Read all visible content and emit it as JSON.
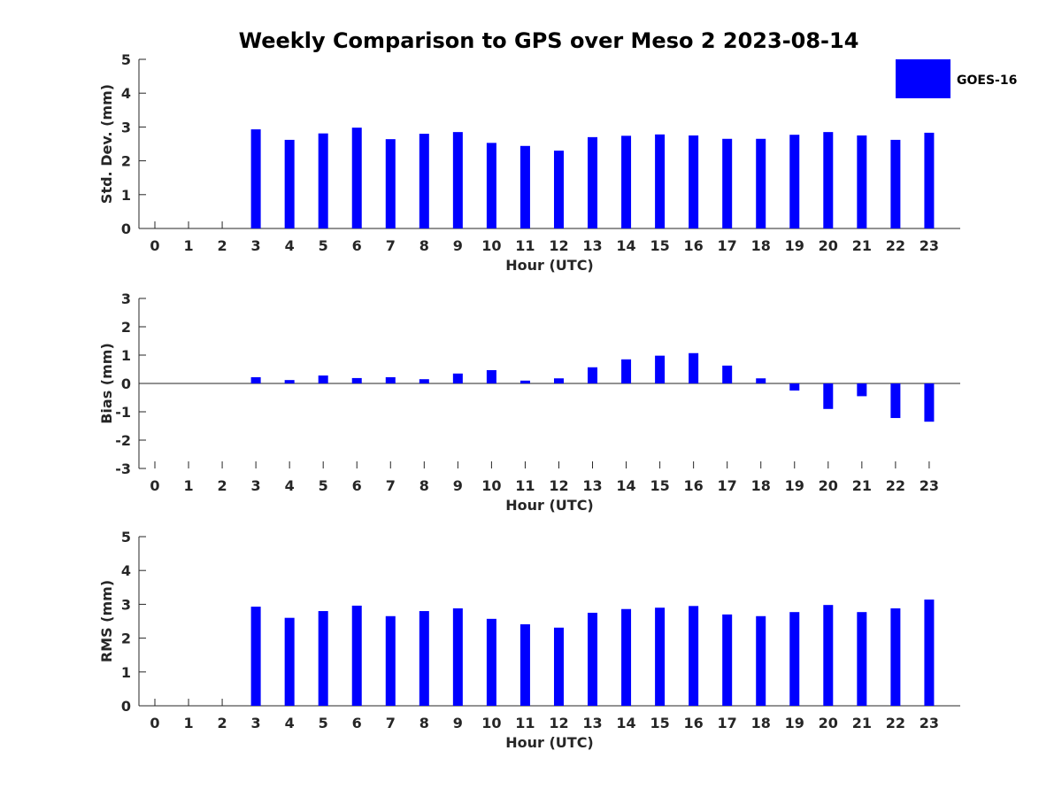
{
  "title": "Weekly Comparison to GPS over Meso 2 2023-08-14",
  "legend": {
    "label": "GOES-16",
    "color": "#0000ff"
  },
  "chart_data": [
    {
      "type": "bar",
      "name": "stddev",
      "xlabel": "Hour (UTC)",
      "ylabel": "Std. Dev. (mm)",
      "ylim": [
        0,
        5
      ],
      "yticks": [
        "0",
        "1",
        "2",
        "3",
        "4",
        "5"
      ],
      "categories": [
        "0",
        "1",
        "2",
        "3",
        "4",
        "5",
        "6",
        "7",
        "8",
        "9",
        "10",
        "11",
        "12",
        "13",
        "14",
        "15",
        "16",
        "17",
        "18",
        "19",
        "20",
        "21",
        "22",
        "23"
      ],
      "series": [
        {
          "name": "GOES-16",
          "values": [
            null,
            null,
            null,
            2.93,
            2.62,
            2.81,
            2.98,
            2.64,
            2.8,
            2.85,
            2.53,
            2.44,
            2.3,
            2.7,
            2.74,
            2.78,
            2.75,
            2.65,
            2.65,
            2.77,
            2.85,
            2.75,
            2.62,
            2.83
          ]
        }
      ]
    },
    {
      "type": "bar",
      "name": "bias",
      "xlabel": "Hour (UTC)",
      "ylabel": "Bias (mm)",
      "ylim": [
        -3,
        3
      ],
      "yticks": [
        "-3",
        "-2",
        "-1",
        "0",
        "1",
        "2",
        "3"
      ],
      "categories": [
        "0",
        "1",
        "2",
        "3",
        "4",
        "5",
        "6",
        "7",
        "8",
        "9",
        "10",
        "11",
        "12",
        "13",
        "14",
        "15",
        "16",
        "17",
        "18",
        "19",
        "20",
        "21",
        "22",
        "23"
      ],
      "series": [
        {
          "name": "GOES-16",
          "values": [
            null,
            null,
            null,
            0.22,
            0.12,
            0.28,
            0.19,
            0.22,
            0.15,
            0.35,
            0.47,
            0.1,
            0.18,
            0.57,
            0.85,
            0.98,
            1.07,
            0.63,
            0.18,
            -0.25,
            -0.9,
            -0.45,
            -1.22,
            -1.35
          ]
        }
      ]
    },
    {
      "type": "bar",
      "name": "rms",
      "xlabel": "Hour (UTC)",
      "ylabel": "RMS (mm)",
      "ylim": [
        0,
        5
      ],
      "yticks": [
        "0",
        "1",
        "2",
        "3",
        "4",
        "5"
      ],
      "categories": [
        "0",
        "1",
        "2",
        "3",
        "4",
        "5",
        "6",
        "7",
        "8",
        "9",
        "10",
        "11",
        "12",
        "13",
        "14",
        "15",
        "16",
        "17",
        "18",
        "19",
        "20",
        "21",
        "22",
        "23"
      ],
      "series": [
        {
          "name": "GOES-16",
          "values": [
            null,
            null,
            null,
            2.93,
            2.6,
            2.8,
            2.96,
            2.65,
            2.8,
            2.88,
            2.57,
            2.41,
            2.31,
            2.75,
            2.86,
            2.9,
            2.95,
            2.7,
            2.65,
            2.77,
            2.98,
            2.77,
            2.88,
            3.14
          ]
        }
      ]
    }
  ]
}
